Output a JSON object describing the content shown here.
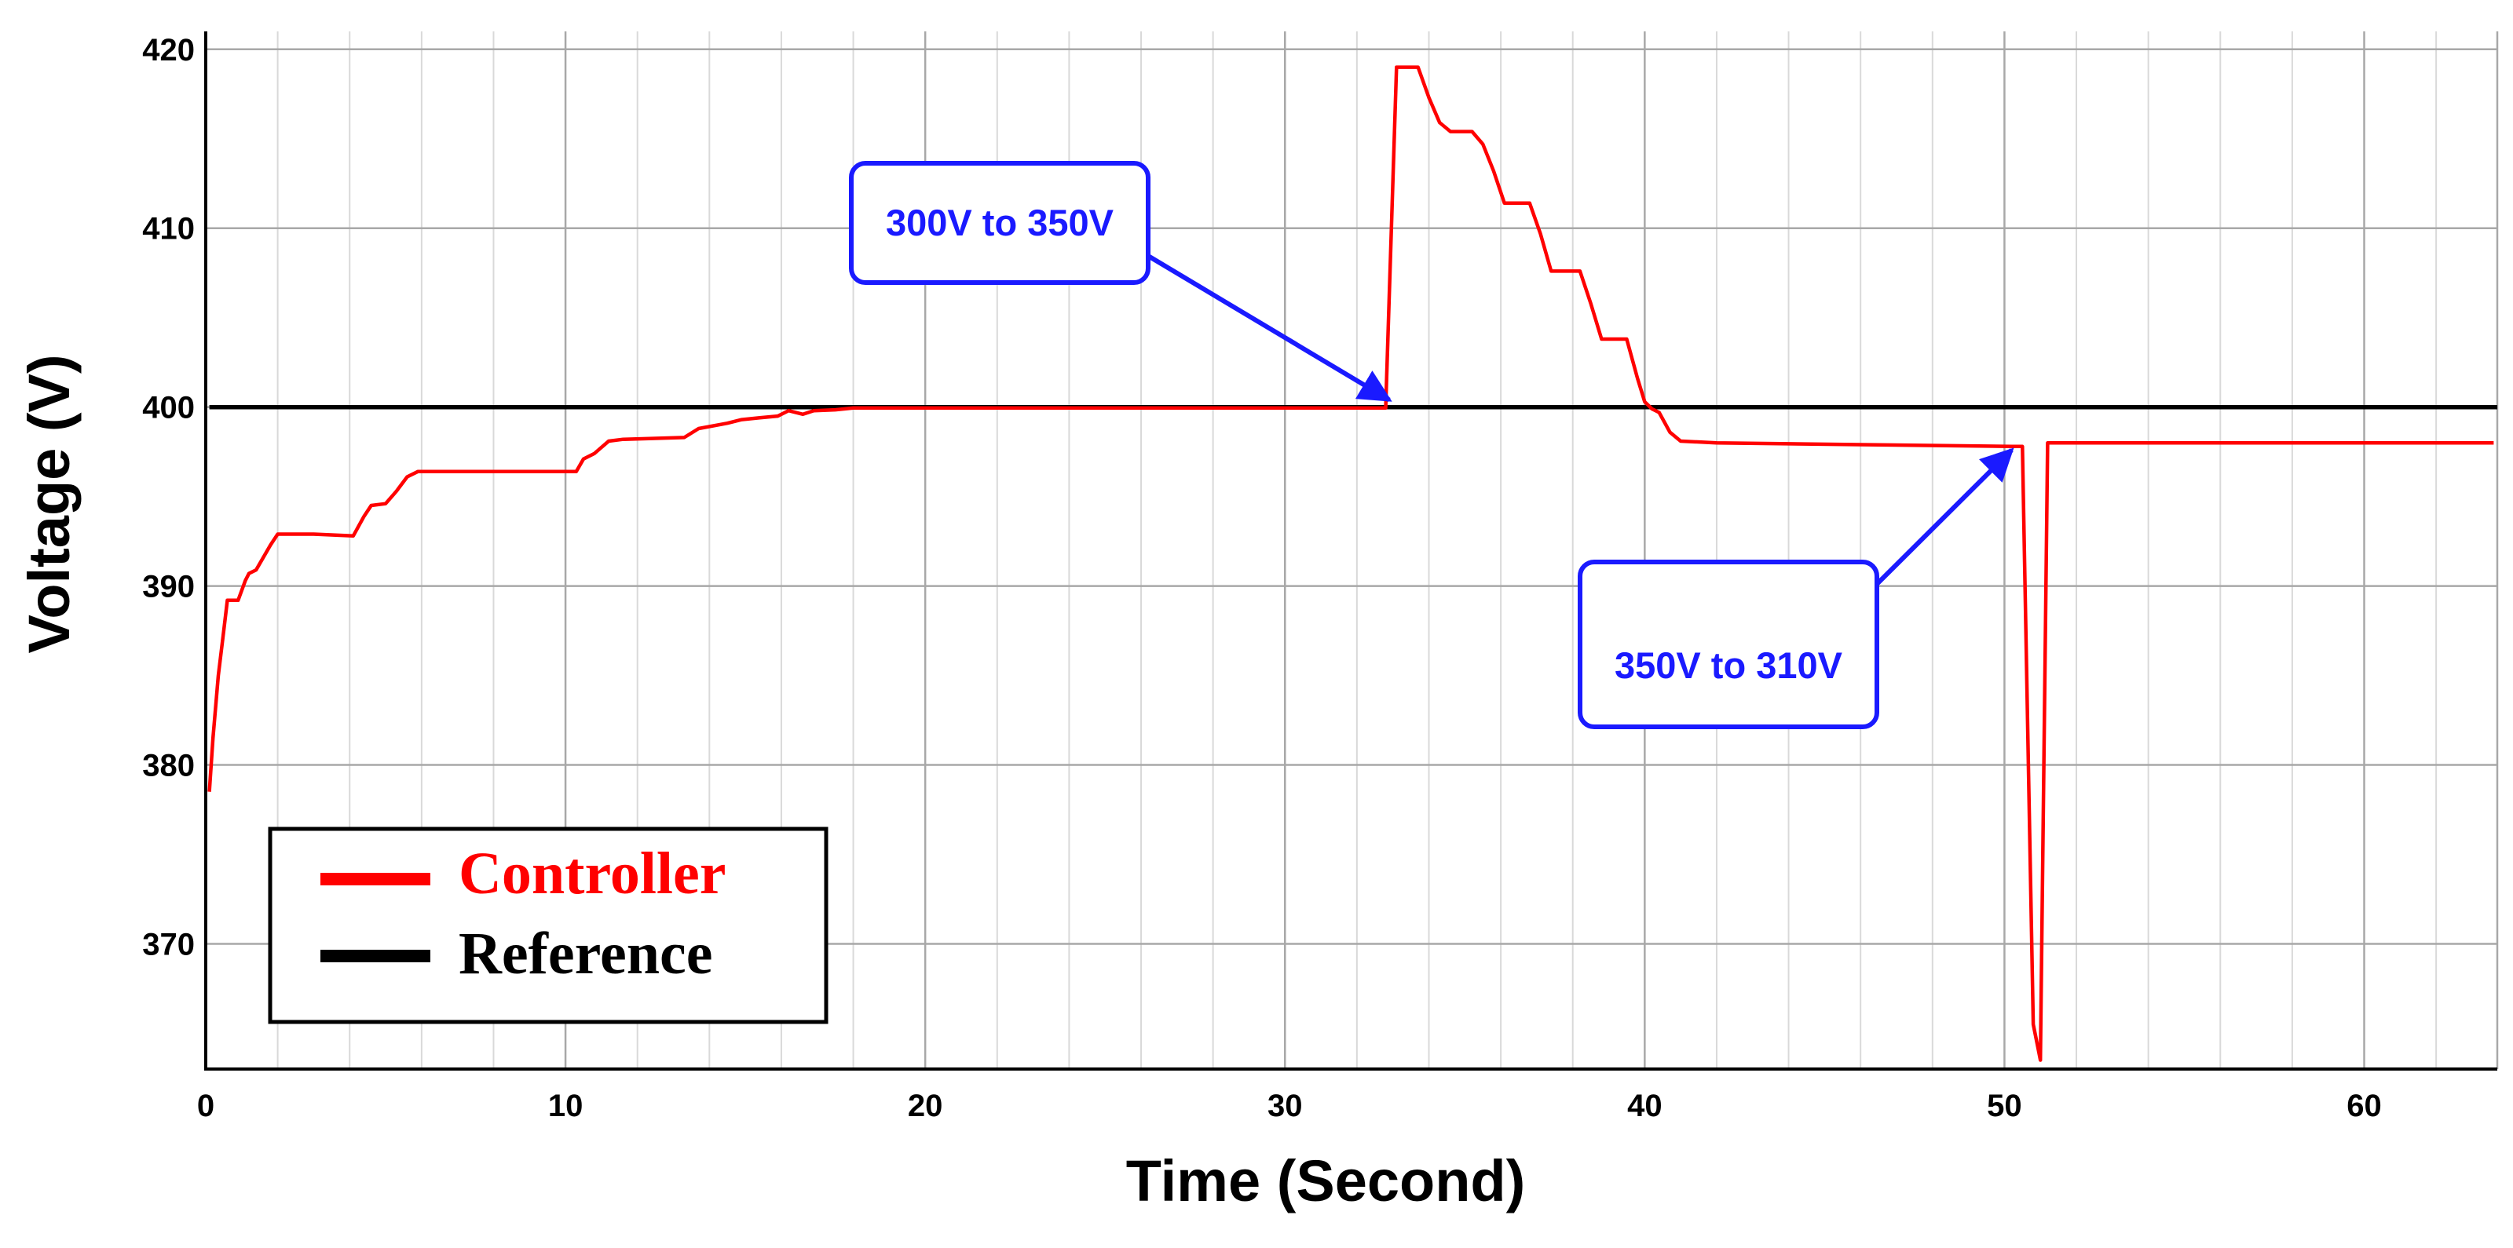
{
  "chart_data": {
    "type": "line",
    "title": "",
    "xlabel": "Time (Second)",
    "ylabel": "Voltage (V)",
    "xlim": [
      0,
      63.7
    ],
    "ylim": [
      363,
      421
    ],
    "x_ticks": [
      0,
      10,
      20,
      30,
      40,
      50,
      60
    ],
    "y_ticks": [
      370,
      380,
      390,
      400,
      410,
      420
    ],
    "x_minor_step": 2,
    "grid": true,
    "legend_position": "bottom-left",
    "series": [
      {
        "name": "Controller",
        "color": "#ff0000",
        "points": [
          [
            0.1,
            378.5
          ],
          [
            0.2,
            381.5
          ],
          [
            0.35,
            385.0
          ],
          [
            0.5,
            387.5
          ],
          [
            0.6,
            389.2
          ],
          [
            0.9,
            389.2
          ],
          [
            1.1,
            390.3
          ],
          [
            1.2,
            390.7
          ],
          [
            1.4,
            390.9
          ],
          [
            1.8,
            392.3
          ],
          [
            2.0,
            392.9
          ],
          [
            3.0,
            392.9
          ],
          [
            4.1,
            392.8
          ],
          [
            4.4,
            393.9
          ],
          [
            4.6,
            394.5
          ],
          [
            5.0,
            394.6
          ],
          [
            5.3,
            395.3
          ],
          [
            5.6,
            396.1
          ],
          [
            5.9,
            396.4
          ],
          [
            7.0,
            396.4
          ],
          [
            10.3,
            396.4
          ],
          [
            10.5,
            397.1
          ],
          [
            10.8,
            397.4
          ],
          [
            11.2,
            398.1
          ],
          [
            11.6,
            398.2
          ],
          [
            13.3,
            398.3
          ],
          [
            13.7,
            398.8
          ],
          [
            14.5,
            399.1
          ],
          [
            14.9,
            399.3
          ],
          [
            15.4,
            399.4
          ],
          [
            15.9,
            399.5
          ],
          [
            16.2,
            399.8
          ],
          [
            16.6,
            399.6
          ],
          [
            16.9,
            399.8
          ],
          [
            17.5,
            399.85
          ],
          [
            18.0,
            399.95
          ],
          [
            20.0,
            399.95
          ],
          [
            25.0,
            399.95
          ],
          [
            30.0,
            399.95
          ],
          [
            32.8,
            399.95
          ],
          [
            33.1,
            419.0
          ],
          [
            33.7,
            419.0
          ],
          [
            34.0,
            417.3
          ],
          [
            34.3,
            415.9
          ],
          [
            34.6,
            415.4
          ],
          [
            35.2,
            415.4
          ],
          [
            35.5,
            414.7
          ],
          [
            35.8,
            413.2
          ],
          [
            36.1,
            411.4
          ],
          [
            36.8,
            411.4
          ],
          [
            37.1,
            409.7
          ],
          [
            37.4,
            407.6
          ],
          [
            38.2,
            407.6
          ],
          [
            38.5,
            405.8
          ],
          [
            38.8,
            403.8
          ],
          [
            39.5,
            403.8
          ],
          [
            39.8,
            401.6
          ],
          [
            40.0,
            400.3
          ],
          [
            40.2,
            399.9
          ],
          [
            40.4,
            399.7
          ],
          [
            40.7,
            398.6
          ],
          [
            41.0,
            398.1
          ],
          [
            42.0,
            398.0
          ],
          [
            46.0,
            397.9
          ],
          [
            50.2,
            397.8
          ],
          [
            50.5,
            397.8
          ],
          [
            50.8,
            365.5
          ],
          [
            51.0,
            363.5
          ],
          [
            51.2,
            398.0
          ],
          [
            55.0,
            398.0
          ],
          [
            60.0,
            398.0
          ],
          [
            63.6,
            398.0
          ]
        ]
      },
      {
        "name": "Reference",
        "color": "#000000",
        "points": [
          [
            0.1,
            400.0
          ],
          [
            63.7,
            400.0
          ]
        ]
      }
    ],
    "annotations": [
      {
        "text": "300V to 350V",
        "color": "#1a1aff",
        "arrow_to": [
          32.9,
          400.4
        ]
      },
      {
        "text": "350V to 310V",
        "color": "#1a1aff",
        "arrow_to": [
          50.2,
          397.6
        ]
      }
    ]
  }
}
